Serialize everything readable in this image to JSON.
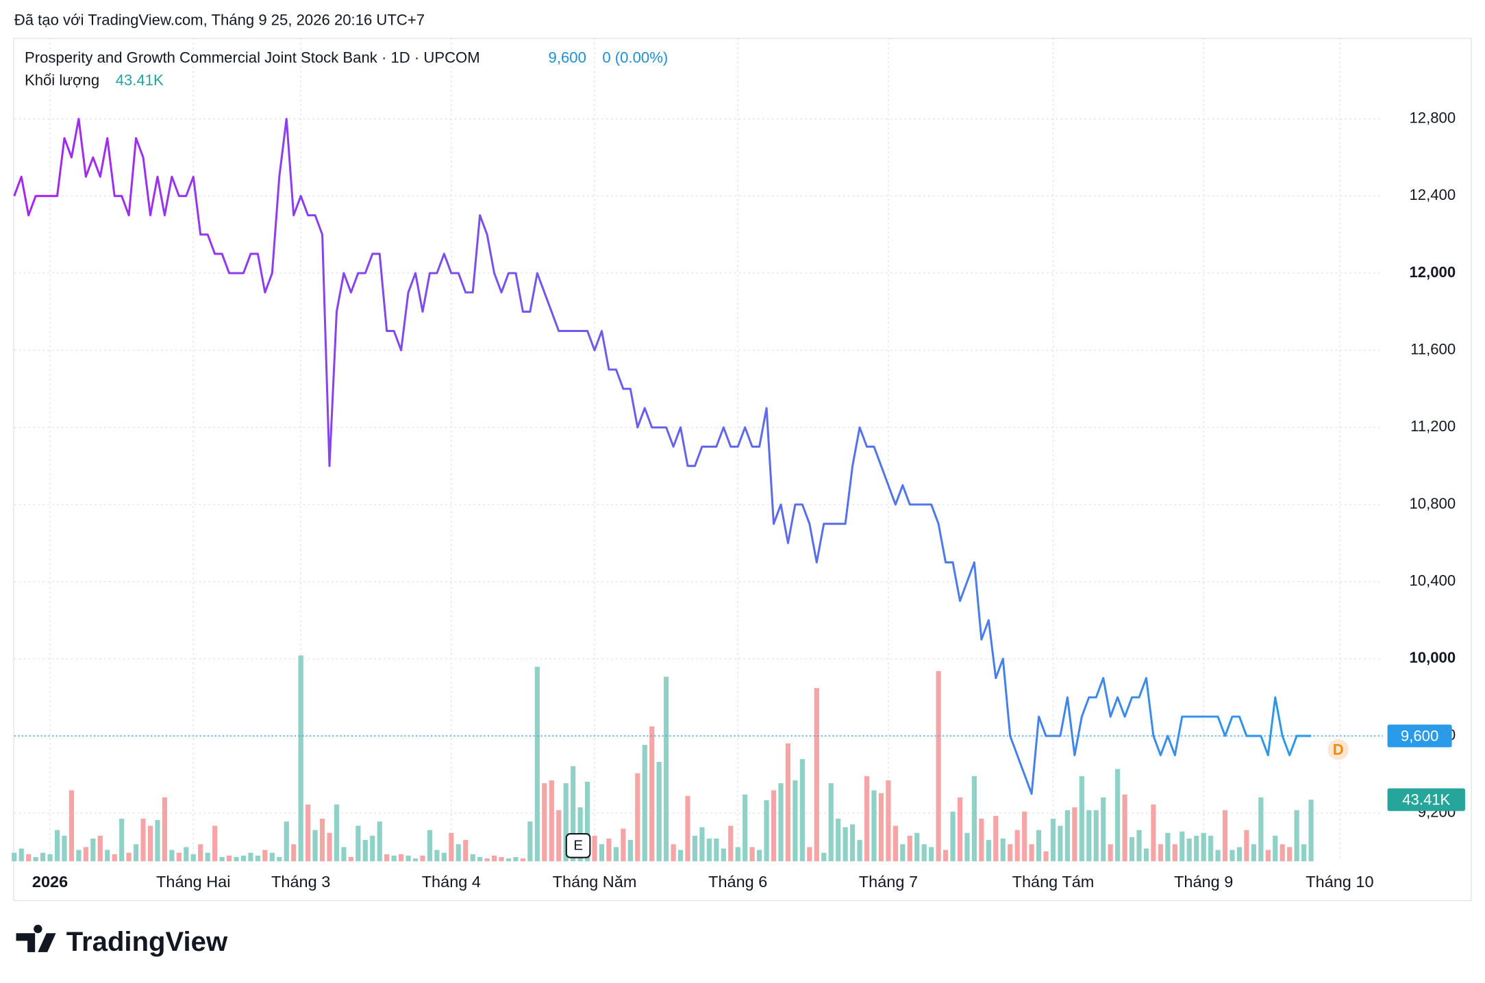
{
  "header": {
    "created": "Đã tạo với TradingView.com, Tháng 9 25, 2026 20:16 UTC+7",
    "brand": "TradingView"
  },
  "chart_data": {
    "type": "line",
    "title": "Prosperity and Growth Commercial Joint Stock Bank · 1D · UPCOM",
    "price_label": "9,600",
    "change": "0 (0.00%)",
    "xlim": [
      0,
      191
    ],
    "xticks": [
      {
        "value": 5,
        "label": "2026"
      },
      {
        "value": 25,
        "label": "Tháng Hai"
      },
      {
        "value": 40,
        "label": "Tháng 3"
      },
      {
        "value": 61,
        "label": "Tháng 4"
      },
      {
        "value": 81,
        "label": "Tháng Năm"
      },
      {
        "value": 101,
        "label": "Tháng 6"
      },
      {
        "value": 122,
        "label": "Tháng 7"
      },
      {
        "value": 145,
        "label": "Tháng Tám"
      },
      {
        "value": 166,
        "label": "Tháng 9"
      },
      {
        "value": 185,
        "label": "Tháng 10"
      }
    ],
    "ylim": [
      8950,
      13220
    ],
    "yticks": [
      {
        "value": 9200,
        "label": "9,200"
      },
      {
        "value": 9600,
        "label": "9,600"
      },
      {
        "value": 10000,
        "label": "10,000"
      },
      {
        "value": 10400,
        "label": "10,400"
      },
      {
        "value": 10800,
        "label": "10,800"
      },
      {
        "value": 11200,
        "label": "11,200"
      },
      {
        "value": 11600,
        "label": "11,600"
      },
      {
        "value": 12000,
        "label": "12,000"
      },
      {
        "value": 12400,
        "label": "12,400"
      },
      {
        "value": 12800,
        "label": "12,800"
      }
    ],
    "grid": true,
    "series": [
      {
        "colors": [
          "#a626f0",
          "#2a9be8"
        ],
        "values": [
          12400,
          12500,
          12300,
          12400,
          12400,
          12400,
          12400,
          12700,
          12600,
          12800,
          12500,
          12600,
          12500,
          12700,
          12400,
          12400,
          12300,
          12700,
          12600,
          12300,
          12500,
          12300,
          12500,
          12400,
          12400,
          12500,
          12200,
          12200,
          12100,
          12100,
          12000,
          12000,
          12000,
          12100,
          12100,
          11900,
          12000,
          12500,
          12800,
          12300,
          12400,
          12300,
          12300,
          12200,
          11000,
          11800,
          12000,
          11900,
          12000,
          12000,
          12100,
          12100,
          11700,
          11700,
          11600,
          11900,
          12000,
          11800,
          12000,
          12000,
          12100,
          12000,
          12000,
          11900,
          11900,
          12300,
          12200,
          12000,
          11900,
          12000,
          12000,
          11800,
          11800,
          12000,
          11900,
          11800,
          11700,
          11700,
          11700,
          11700,
          11700,
          11600,
          11700,
          11500,
          11500,
          11400,
          11400,
          11200,
          11300,
          11200,
          11200,
          11200,
          11100,
          11200,
          11000,
          11000,
          11100,
          11100,
          11100,
          11200,
          11100,
          11100,
          11200,
          11100,
          11100,
          11300,
          10700,
          10800,
          10600,
          10800,
          10800,
          10700,
          10500,
          10700,
          10700,
          10700,
          10700,
          11000,
          11200,
          11100,
          11100,
          11000,
          10900,
          10800,
          10900,
          10800,
          10800,
          10800,
          10800,
          10700,
          10500,
          10500,
          10300,
          10400,
          10500,
          10100,
          10200,
          9900,
          10000,
          9600,
          9500,
          9400,
          9300,
          9700,
          9600,
          9600,
          9600,
          9800,
          9500,
          9700,
          9800,
          9800,
          9900,
          9700,
          9800,
          9700,
          9800,
          9800,
          9900,
          9600,
          9500,
          9600,
          9500,
          9700,
          9700,
          9700,
          9700,
          9700,
          9700,
          9600,
          9700,
          9700,
          9600,
          9600,
          9600,
          9500,
          9800,
          9600,
          9500,
          9600,
          9600,
          9600
        ]
      }
    ],
    "volume": {
      "name": "Khối lượng",
      "up_color": "#8fd1c6",
      "down_color": "#f5a5a5",
      "vlim": [
        0,
        580000
      ],
      "last_label": "43.41K",
      "values": [
        6000,
        9000,
        5000,
        3000,
        6000,
        5000,
        22000,
        18000,
        50000,
        8000,
        10000,
        16000,
        18000,
        8000,
        5000,
        30000,
        6000,
        12000,
        30000,
        25000,
        29000,
        45000,
        8000,
        6000,
        10000,
        5000,
        12000,
        6000,
        25000,
        3000,
        4000,
        3000,
        4000,
        6000,
        4000,
        8000,
        6000,
        3000,
        28000,
        12000,
        145000,
        40000,
        22000,
        30000,
        20000,
        40000,
        10000,
        3000,
        25000,
        15000,
        18000,
        28000,
        5000,
        4000,
        5000,
        4000,
        2000,
        4000,
        22000,
        8000,
        6000,
        20000,
        12000,
        15000,
        5000,
        3000,
        2000,
        4000,
        3000,
        2000,
        3000,
        2000,
        28000,
        137000,
        55000,
        57000,
        36000,
        55000,
        67000,
        38000,
        56000,
        18000,
        12000,
        16000,
        10000,
        23000,
        15000,
        62000,
        82000,
        95000,
        70000,
        130000,
        12000,
        8000,
        46000,
        18000,
        24000,
        16000,
        16000,
        9000,
        25000,
        10000,
        47000,
        10000,
        8000,
        43000,
        50000,
        55000,
        83000,
        57000,
        72000,
        10000,
        122000,
        6000,
        55000,
        30000,
        24000,
        26000,
        15000,
        60000,
        50000,
        48000,
        57000,
        25000,
        12000,
        18000,
        20000,
        12000,
        10000,
        134000,
        8000,
        35000,
        45000,
        20000,
        60000,
        30000,
        15000,
        32000,
        16000,
        12000,
        22000,
        35000,
        12000,
        22000,
        7000,
        30000,
        25000,
        36000,
        38000,
        60000,
        36000,
        36000,
        45000,
        12000,
        65000,
        47000,
        17000,
        22000,
        9000,
        40000,
        12000,
        20000,
        12000,
        21000,
        16000,
        18000,
        20000,
        18000,
        8000,
        36000,
        8000,
        10000,
        22000,
        12000,
        45000,
        8000,
        18000,
        12000,
        10000,
        36000,
        12000,
        43410
      ]
    }
  }
}
